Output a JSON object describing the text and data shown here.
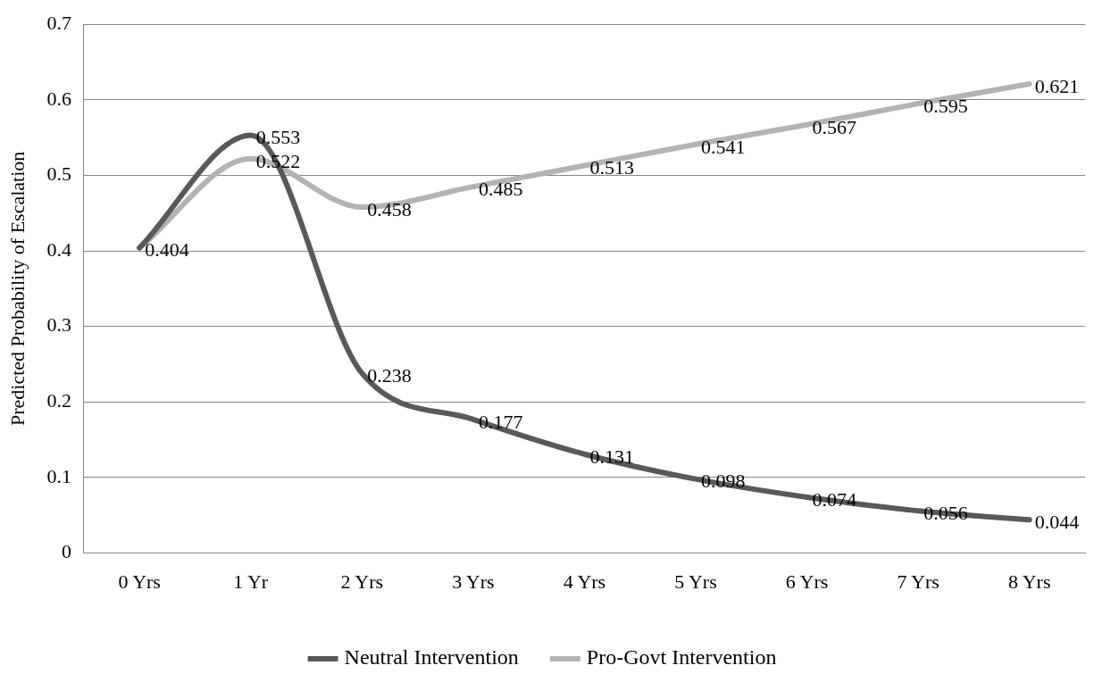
{
  "chart_data": {
    "type": "line",
    "ylabel": "Predicted Probability of Escalation",
    "categories": [
      "0 Yrs",
      "1 Yr",
      "2 Yrs",
      "3 Yrs",
      "4 Yrs",
      "5 Yrs",
      "6 Yrs",
      "7 Yrs",
      "8 Yrs"
    ],
    "series": [
      {
        "name": "Neutral Intervention",
        "color": "#595959",
        "values": [
          0.404,
          0.553,
          0.238,
          0.177,
          0.131,
          0.098,
          0.074,
          0.056,
          0.044
        ],
        "value_labels": [
          null,
          "0.553",
          "0.238",
          "0.177",
          "0.131",
          "0.098",
          "0.074",
          "0.056",
          "0.044"
        ]
      },
      {
        "name": "Pro-Govt Intervention",
        "color": "#b3b3b3",
        "values": [
          0.404,
          0.522,
          0.458,
          0.485,
          0.513,
          0.541,
          0.567,
          0.595,
          0.621
        ],
        "value_labels": [
          "0.404",
          "0.522",
          "0.458",
          "0.485",
          "0.513",
          "0.541",
          "0.567",
          "0.595",
          "0.621"
        ]
      }
    ],
    "ylim": [
      0,
      0.7
    ],
    "yticks": [
      0,
      0.1,
      0.2,
      0.3,
      0.4,
      0.5,
      0.6,
      0.7
    ],
    "grid": "y",
    "legend": "bottom",
    "marker": "none",
    "line_style": "solid"
  }
}
